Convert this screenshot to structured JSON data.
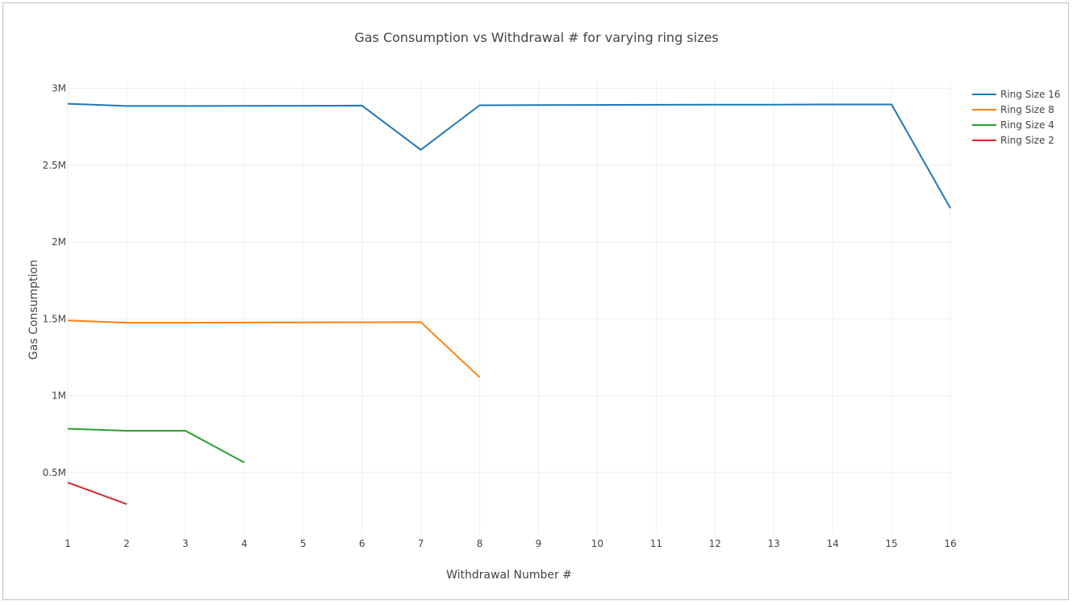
{
  "chart_data": {
    "type": "line",
    "title": "Gas Consumption vs Withdrawal # for varying ring sizes",
    "xlabel": "Withdrawal Number #",
    "ylabel": "Gas Consumption",
    "xlim": [
      1,
      16
    ],
    "ylim": [
      0.1,
      3.05
    ],
    "x_ticks": [
      1,
      2,
      3,
      4,
      5,
      6,
      7,
      8,
      9,
      10,
      11,
      12,
      13,
      14,
      15,
      16
    ],
    "x_tick_labels": [
      "1",
      "2",
      "3",
      "4",
      "5",
      "6",
      "7",
      "8",
      "9",
      "10",
      "11",
      "12",
      "13",
      "14",
      "15",
      "16"
    ],
    "y_ticks": [
      0.5,
      1,
      1.5,
      2,
      2.5,
      3
    ],
    "y_tick_labels": [
      "0.5M",
      "1M",
      "1.5M",
      "2M",
      "2.5M",
      "3M"
    ],
    "y_unit_note": "values in millions of gas",
    "grid": true,
    "legend_position": "top-right",
    "series": [
      {
        "name": "Ring Size 16",
        "color": "#1f77b4",
        "x": [
          1,
          2,
          3,
          4,
          5,
          6,
          7,
          8,
          9,
          10,
          11,
          12,
          13,
          14,
          15,
          16
        ],
        "y": [
          2.9,
          2.885,
          2.885,
          2.886,
          2.887,
          2.888,
          2.6,
          2.89,
          2.891,
          2.892,
          2.893,
          2.894,
          2.894,
          2.895,
          2.895,
          2.22
        ]
      },
      {
        "name": "Ring Size 8",
        "color": "#ff7f0e",
        "x": [
          1,
          2,
          3,
          4,
          5,
          6,
          7,
          8
        ],
        "y": [
          1.49,
          1.475,
          1.475,
          1.476,
          1.477,
          1.478,
          1.479,
          1.12
        ]
      },
      {
        "name": "Ring Size 4",
        "color": "#2ca02c",
        "x": [
          1,
          2,
          3,
          4
        ],
        "y": [
          0.785,
          0.772,
          0.772,
          0.565
        ]
      },
      {
        "name": "Ring Size 2",
        "color": "#d62728",
        "x": [
          1,
          2
        ],
        "y": [
          0.435,
          0.295
        ]
      }
    ]
  }
}
